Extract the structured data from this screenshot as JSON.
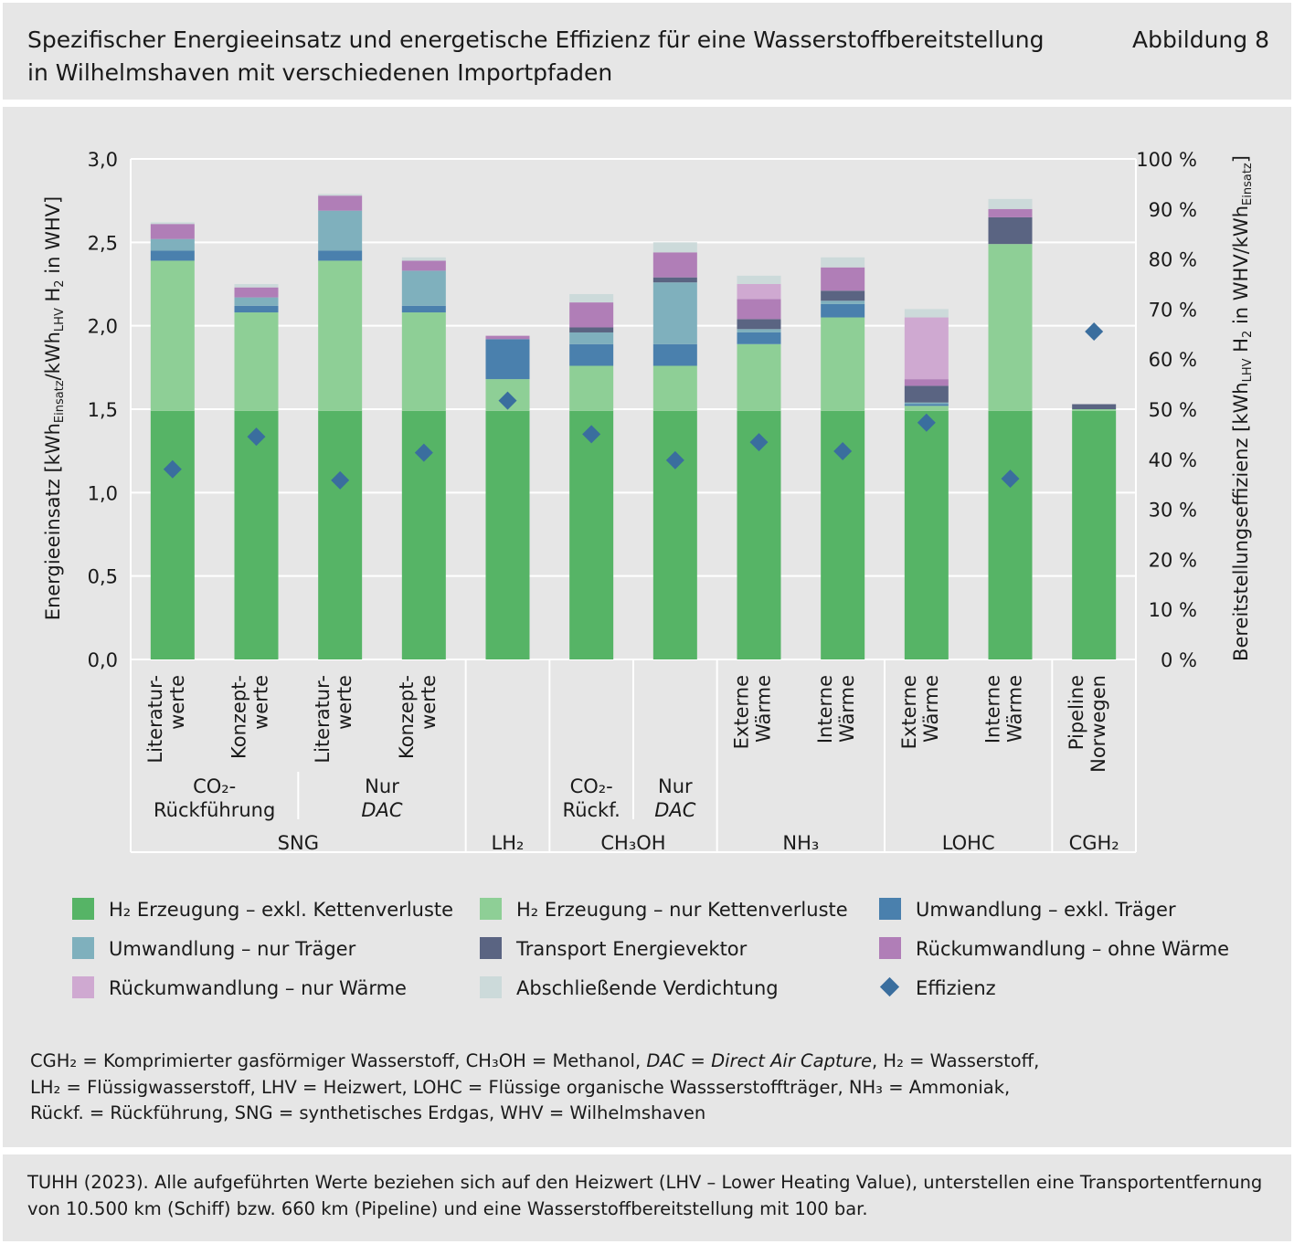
{
  "header": {
    "title_line1": "Spezifischer Energieeinsatz und energetische Effizienz für eine Wasserstoffbereitstellung",
    "title_line2": "in Wilhelmshaven mit verschiedenen Importpfaden",
    "figure_number": "Abbildung 8"
  },
  "colors": {
    "h2_excl": "#56b466",
    "h2_chain": "#8ecf96",
    "umw_excl": "#4a80ad",
    "umw_traeger": "#7fb0bd",
    "transport": "#5a6482",
    "rueck_ohne": "#b07eb7",
    "rueck_waerme": "#cfa9d1",
    "verdichtung": "#ccdada",
    "effizienz": "#3a6e9e",
    "grid": "#ffffff",
    "axis": "#ffffff"
  },
  "chart_data": {
    "type": "bar",
    "stacked": true,
    "y_left": {
      "label_main": "Energieeinsatz [kWh",
      "label_sub1": "Einsatz",
      "label_mid": "/kWh",
      "label_sub2": "LHV",
      "label_end": " H",
      "label_sub3": "2",
      "label_tail": " in WHV]",
      "ylim": [
        0,
        3.0
      ],
      "ticks": [
        "0,0",
        "0,5",
        "1,0",
        "1,5",
        "2,0",
        "2,5",
        "3,0"
      ]
    },
    "y_right": {
      "label_main": "Bereitstellungseffizienz [kWh",
      "label_sub1": "LHV",
      "label_mid": " H",
      "label_sub2": "2",
      "label_end": " in WHV/kWh",
      "label_sub3": "Einsatz",
      "label_tail": "]",
      "ylim": [
        0,
        100
      ],
      "ticks": [
        "0 %",
        "10 %",
        "20 %",
        "30 %",
        "40 %",
        "50 %",
        "60 %",
        "70 %",
        "80 %",
        "90 %",
        "100 %"
      ]
    },
    "categories": [
      [
        "Literatur-",
        "werte"
      ],
      [
        "Konzept-",
        "werte"
      ],
      [
        "Literatur-",
        "werte"
      ],
      [
        "Konzept-",
        "werte"
      ],
      [],
      [],
      [],
      [
        "Externe",
        "Wärme"
      ],
      [
        "Interne",
        "Wärme"
      ],
      [
        "Externe",
        "Wärme"
      ],
      [
        "Interne",
        "Wärme"
      ],
      [
        "Pipeline",
        "Norwegen"
      ]
    ],
    "subgroups": [
      {
        "line1": "CO₂-",
        "line2": "Rückführung",
        "italic2": false
      },
      {
        "line1": "Nur",
        "line2": "DAC",
        "italic2": true
      },
      {
        "line1": "CO₂-",
        "line2": "Rückf.",
        "italic2": false
      },
      {
        "line1": "Nur",
        "line2": "DAC",
        "italic2": true
      }
    ],
    "groups": [
      "SNG",
      "LH₂",
      "CH₃OH",
      "NH₃",
      "LOHC",
      "CGH₂"
    ],
    "series": [
      {
        "name": "H₂ Erzeugung – exkl. Kettenverluste",
        "values": [
          1.49,
          1.49,
          1.49,
          1.49,
          1.49,
          1.49,
          1.49,
          1.49,
          1.49,
          1.49,
          1.49,
          1.49
        ]
      },
      {
        "name": "H₂ Erzeugung – nur Kettenverluste",
        "values": [
          0.9,
          0.59,
          0.9,
          0.59,
          0.19,
          0.27,
          0.27,
          0.4,
          0.56,
          0.03,
          1.0,
          0.01
        ]
      },
      {
        "name": "Umwandlung – exkl. Träger",
        "values": [
          0.06,
          0.04,
          0.06,
          0.04,
          0.24,
          0.13,
          0.13,
          0.07,
          0.08,
          0.01,
          0.0,
          0.0
        ]
      },
      {
        "name": "Umwandlung – nur Träger",
        "values": [
          0.07,
          0.05,
          0.24,
          0.21,
          0.0,
          0.07,
          0.37,
          0.02,
          0.02,
          0.01,
          0.0,
          0.0
        ]
      },
      {
        "name": "Transport Energievektor",
        "values": [
          0.0,
          0.0,
          0.0,
          0.0,
          0.0,
          0.03,
          0.03,
          0.06,
          0.06,
          0.1,
          0.16,
          0.03
        ]
      },
      {
        "name": "Rückumwandlung – ohne Wärme",
        "values": [
          0.09,
          0.06,
          0.09,
          0.06,
          0.02,
          0.15,
          0.15,
          0.12,
          0.14,
          0.04,
          0.05,
          0.0
        ]
      },
      {
        "name": "Rückumwandlung – nur Wärme",
        "values": [
          0.0,
          0.0,
          0.0,
          0.0,
          0.0,
          0.0,
          0.0,
          0.09,
          0.0,
          0.37,
          0.0,
          0.0
        ]
      },
      {
        "name": "Abschließende Verdichtung",
        "values": [
          0.01,
          0.02,
          0.01,
          0.02,
          0.0,
          0.05,
          0.06,
          0.05,
          0.06,
          0.05,
          0.06,
          0.0
        ]
      }
    ],
    "efficiency": {
      "name": "Effizienz",
      "values": [
        38.0,
        44.5,
        35.8,
        41.3,
        51.7,
        45.0,
        39.8,
        43.4,
        41.6,
        47.3,
        36.1,
        65.5
      ]
    },
    "grid": true
  },
  "legend": {
    "h2_excl": "H₂ Erzeugung – exkl. Kettenverluste",
    "h2_chain": "H₂ Erzeugung – nur Kettenverluste",
    "umw_excl": "Umwandlung – exkl. Träger",
    "umw_traeger": "Umwandlung – nur Träger",
    "transport": "Transport Energievektor",
    "rueck_ohne": "Rückumwandlung – ohne Wärme",
    "rueck_waerme": "Rückumwandlung – nur Wärme",
    "verdichtung": "Abschließende Verdichtung",
    "effizienz": "Effizienz"
  },
  "abbreviations": {
    "l1a": "CGH₂ = Komprimierter gasförmiger Wasserstoff, CH₃OH = Methanol, ",
    "l1b": "DAC = Direct Air Capture",
    "l1c": ", H₂ = Wasserstoff,",
    "l2": "LH₂ = Flüssigwasserstoff, LHV =  Heizwert, LOHC = Flüssige organische Wassserstoffträger, NH₃ = Ammoniak,",
    "l3": "Rückf. = Rückführung, SNG = synthetisches Erdgas, WHV = Wilhelmshaven"
  },
  "source": {
    "l1": "TUHH (2023). Alle aufgeführten Werte beziehen sich auf den Heizwert (LHV – Lower Heating Value), unterstellen eine Transportentfernung",
    "l2": "von 10.500 km (Schiff) bzw. 660 km (Pipeline) und eine Wasserstoffbereitstellung mit 100 bar."
  }
}
